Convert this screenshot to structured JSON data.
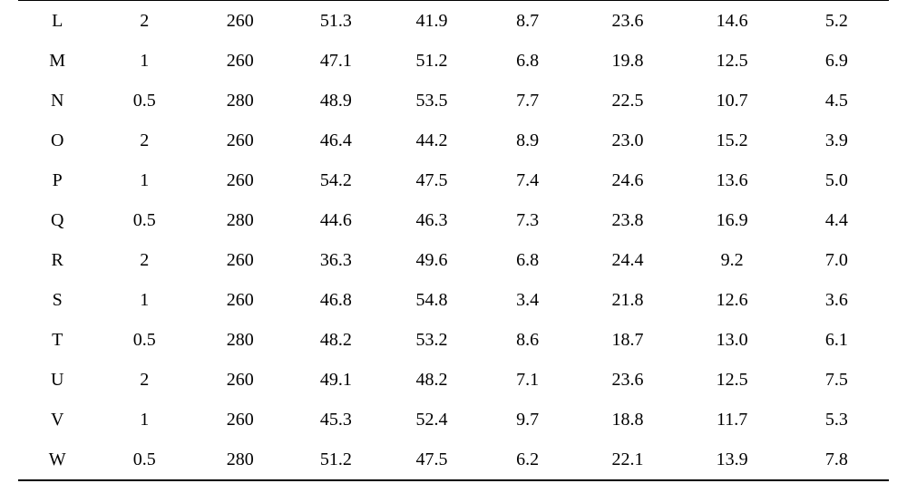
{
  "table": {
    "type": "table",
    "background_color": "#ffffff",
    "text_color": "#000000",
    "font_family": "Times New Roman",
    "font_size_pt": 15,
    "border_top_width": 1,
    "border_bottom_width": 2,
    "border_color": "#000000",
    "column_count": 9,
    "column_alignment": [
      "center",
      "center",
      "center",
      "center",
      "center",
      "center",
      "center",
      "center",
      "center"
    ],
    "column_widths_pct": [
      9,
      11,
      11,
      11,
      11,
      11,
      12,
      12,
      12
    ],
    "rows": [
      [
        "L",
        "2",
        "260",
        "51.3",
        "41.9",
        "8.7",
        "23.6",
        "14.6",
        "5.2"
      ],
      [
        "M",
        "1",
        "260",
        "47.1",
        "51.2",
        "6.8",
        "19.8",
        "12.5",
        "6.9"
      ],
      [
        "N",
        "0.5",
        "280",
        "48.9",
        "53.5",
        "7.7",
        "22.5",
        "10.7",
        "4.5"
      ],
      [
        "O",
        "2",
        "260",
        "46.4",
        "44.2",
        "8.9",
        "23.0",
        "15.2",
        "3.9"
      ],
      [
        "P",
        "1",
        "260",
        "54.2",
        "47.5",
        "7.4",
        "24.6",
        "13.6",
        "5.0"
      ],
      [
        "Q",
        "0.5",
        "280",
        "44.6",
        "46.3",
        "7.3",
        "23.8",
        "16.9",
        "4.4"
      ],
      [
        "R",
        "2",
        "260",
        "36.3",
        "49.6",
        "6.8",
        "24.4",
        "9.2",
        "7.0"
      ],
      [
        "S",
        "1",
        "260",
        "46.8",
        "54.8",
        "3.4",
        "21.8",
        "12.6",
        "3.6"
      ],
      [
        "T",
        "0.5",
        "280",
        "48.2",
        "53.2",
        "8.6",
        "18.7",
        "13.0",
        "6.1"
      ],
      [
        "U",
        "2",
        "260",
        "49.1",
        "48.2",
        "7.1",
        "23.6",
        "12.5",
        "7.5"
      ],
      [
        "V",
        "1",
        "260",
        "45.3",
        "52.4",
        "9.7",
        "18.8",
        "11.7",
        "5.3"
      ],
      [
        "W",
        "0.5",
        "280",
        "51.2",
        "47.5",
        "6.2",
        "22.1",
        "13.9",
        "7.8"
      ]
    ]
  }
}
